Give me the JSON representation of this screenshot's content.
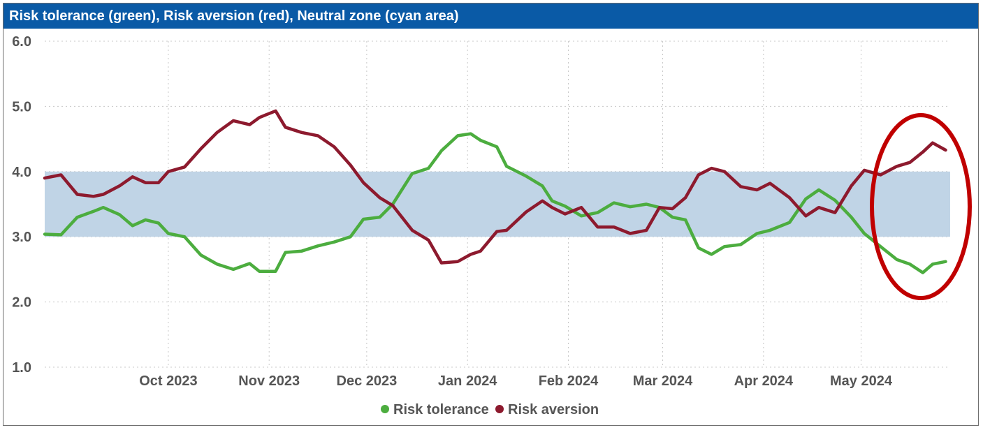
{
  "chart_data": {
    "type": "line",
    "title": "Risk tolerance (green), Risk aversion (red), Neutral zone (cyan area)",
    "ylim": [
      1.0,
      6.0
    ],
    "y_ticks": [
      "1.0",
      "2.0",
      "3.0",
      "4.0",
      "5.0",
      "6.0"
    ],
    "x_range": [
      "2023-08-24",
      "2024-05-27"
    ],
    "x_ticks": [
      {
        "label": "Oct 2023",
        "date": "2023-10-01"
      },
      {
        "label": "Nov 2023",
        "date": "2023-11-01"
      },
      {
        "label": "Dec 2023",
        "date": "2023-12-01"
      },
      {
        "label": "Jan 2024",
        "date": "2024-01-01"
      },
      {
        "label": "Feb 2024",
        "date": "2024-02-01"
      },
      {
        "label": "Mar 2024",
        "date": "2024-03-01"
      },
      {
        "label": "Apr 2024",
        "date": "2024-04-01"
      },
      {
        "label": "May 2024",
        "date": "2024-05-01"
      }
    ],
    "neutral_zone": [
      3.0,
      4.0
    ],
    "grid": true,
    "legend_position": "bottom-center",
    "series": [
      {
        "name": "Risk tolerance",
        "color": "#4cad3f",
        "points": [
          [
            "2023-08-24",
            3.04
          ],
          [
            "2023-08-29",
            3.03
          ],
          [
            "2023-09-03",
            3.3
          ],
          [
            "2023-09-08",
            3.39
          ],
          [
            "2023-09-11",
            3.45
          ],
          [
            "2023-09-16",
            3.34
          ],
          [
            "2023-09-20",
            3.17
          ],
          [
            "2023-09-24",
            3.26
          ],
          [
            "2023-09-28",
            3.21
          ],
          [
            "2023-10-01",
            3.05
          ],
          [
            "2023-10-06",
            3.0
          ],
          [
            "2023-10-11",
            2.72
          ],
          [
            "2023-10-16",
            2.58
          ],
          [
            "2023-10-21",
            2.5
          ],
          [
            "2023-10-26",
            2.59
          ],
          [
            "2023-10-29",
            2.47
          ],
          [
            "2023-11-03",
            2.47
          ],
          [
            "2023-11-06",
            2.76
          ],
          [
            "2023-11-11",
            2.78
          ],
          [
            "2023-11-16",
            2.86
          ],
          [
            "2023-11-21",
            2.92
          ],
          [
            "2023-11-26",
            3.0
          ],
          [
            "2023-11-30",
            3.27
          ],
          [
            "2023-12-05",
            3.3
          ],
          [
            "2023-12-09",
            3.5
          ],
          [
            "2023-12-15",
            3.97
          ],
          [
            "2023-12-20",
            4.05
          ],
          [
            "2023-12-24",
            4.32
          ],
          [
            "2023-12-29",
            4.55
          ],
          [
            "2024-01-02",
            4.58
          ],
          [
            "2024-01-05",
            4.48
          ],
          [
            "2024-01-10",
            4.38
          ],
          [
            "2024-01-13",
            4.08
          ],
          [
            "2024-01-19",
            3.93
          ],
          [
            "2024-01-24",
            3.78
          ],
          [
            "2024-01-27",
            3.55
          ],
          [
            "2024-01-31",
            3.47
          ],
          [
            "2024-02-05",
            3.32
          ],
          [
            "2024-02-10",
            3.37
          ],
          [
            "2024-02-15",
            3.52
          ],
          [
            "2024-02-20",
            3.46
          ],
          [
            "2024-02-25",
            3.5
          ],
          [
            "2024-02-29",
            3.45
          ],
          [
            "2024-03-04",
            3.3
          ],
          [
            "2024-03-08",
            3.26
          ],
          [
            "2024-03-12",
            2.83
          ],
          [
            "2024-03-16",
            2.73
          ],
          [
            "2024-03-20",
            2.85
          ],
          [
            "2024-03-25",
            2.88
          ],
          [
            "2024-03-30",
            3.05
          ],
          [
            "2024-04-03",
            3.1
          ],
          [
            "2024-04-09",
            3.22
          ],
          [
            "2024-04-14",
            3.58
          ],
          [
            "2024-04-18",
            3.72
          ],
          [
            "2024-04-23",
            3.56
          ],
          [
            "2024-04-28",
            3.3
          ],
          [
            "2024-05-02",
            3.05
          ],
          [
            "2024-05-07",
            2.85
          ],
          [
            "2024-05-12",
            2.65
          ],
          [
            "2024-05-16",
            2.58
          ],
          [
            "2024-05-20",
            2.45
          ],
          [
            "2024-05-23",
            2.58
          ],
          [
            "2024-05-27",
            2.62
          ]
        ]
      },
      {
        "name": "Risk aversion",
        "color": "#8d1a2e",
        "points": [
          [
            "2023-08-24",
            3.9
          ],
          [
            "2023-08-29",
            3.95
          ],
          [
            "2023-09-03",
            3.65
          ],
          [
            "2023-09-08",
            3.62
          ],
          [
            "2023-09-11",
            3.65
          ],
          [
            "2023-09-16",
            3.78
          ],
          [
            "2023-09-20",
            3.92
          ],
          [
            "2023-09-24",
            3.83
          ],
          [
            "2023-09-28",
            3.83
          ],
          [
            "2023-10-01",
            4.0
          ],
          [
            "2023-10-06",
            4.07
          ],
          [
            "2023-10-11",
            4.35
          ],
          [
            "2023-10-16",
            4.6
          ],
          [
            "2023-10-21",
            4.78
          ],
          [
            "2023-10-26",
            4.72
          ],
          [
            "2023-10-29",
            4.83
          ],
          [
            "2023-11-03",
            4.93
          ],
          [
            "2023-11-06",
            4.68
          ],
          [
            "2023-11-11",
            4.6
          ],
          [
            "2023-11-16",
            4.55
          ],
          [
            "2023-11-21",
            4.38
          ],
          [
            "2023-11-26",
            4.1
          ],
          [
            "2023-11-30",
            3.83
          ],
          [
            "2023-12-05",
            3.6
          ],
          [
            "2023-12-09",
            3.48
          ],
          [
            "2023-12-15",
            3.1
          ],
          [
            "2023-12-20",
            2.95
          ],
          [
            "2023-12-24",
            2.6
          ],
          [
            "2023-12-29",
            2.62
          ],
          [
            "2024-01-02",
            2.73
          ],
          [
            "2024-01-05",
            2.78
          ],
          [
            "2024-01-10",
            3.08
          ],
          [
            "2024-01-13",
            3.1
          ],
          [
            "2024-01-19",
            3.38
          ],
          [
            "2024-01-24",
            3.55
          ],
          [
            "2024-01-27",
            3.45
          ],
          [
            "2024-01-31",
            3.35
          ],
          [
            "2024-02-05",
            3.45
          ],
          [
            "2024-02-10",
            3.15
          ],
          [
            "2024-02-15",
            3.15
          ],
          [
            "2024-02-20",
            3.05
          ],
          [
            "2024-02-25",
            3.1
          ],
          [
            "2024-02-29",
            3.45
          ],
          [
            "2024-03-04",
            3.43
          ],
          [
            "2024-03-08",
            3.6
          ],
          [
            "2024-03-12",
            3.95
          ],
          [
            "2024-03-16",
            4.05
          ],
          [
            "2024-03-20",
            4.0
          ],
          [
            "2024-03-25",
            3.77
          ],
          [
            "2024-03-30",
            3.72
          ],
          [
            "2024-04-03",
            3.82
          ],
          [
            "2024-04-09",
            3.6
          ],
          [
            "2024-04-14",
            3.32
          ],
          [
            "2024-04-18",
            3.45
          ],
          [
            "2024-04-23",
            3.37
          ],
          [
            "2024-04-28",
            3.78
          ],
          [
            "2024-05-02",
            4.02
          ],
          [
            "2024-05-07",
            3.95
          ],
          [
            "2024-05-12",
            4.08
          ],
          [
            "2024-05-16",
            4.14
          ],
          [
            "2024-05-20",
            4.3
          ],
          [
            "2024-05-23",
            4.44
          ],
          [
            "2024-05-27",
            4.33
          ]
        ]
      }
    ]
  },
  "highlight": {
    "shape": "ellipse",
    "color": "#c00000"
  }
}
